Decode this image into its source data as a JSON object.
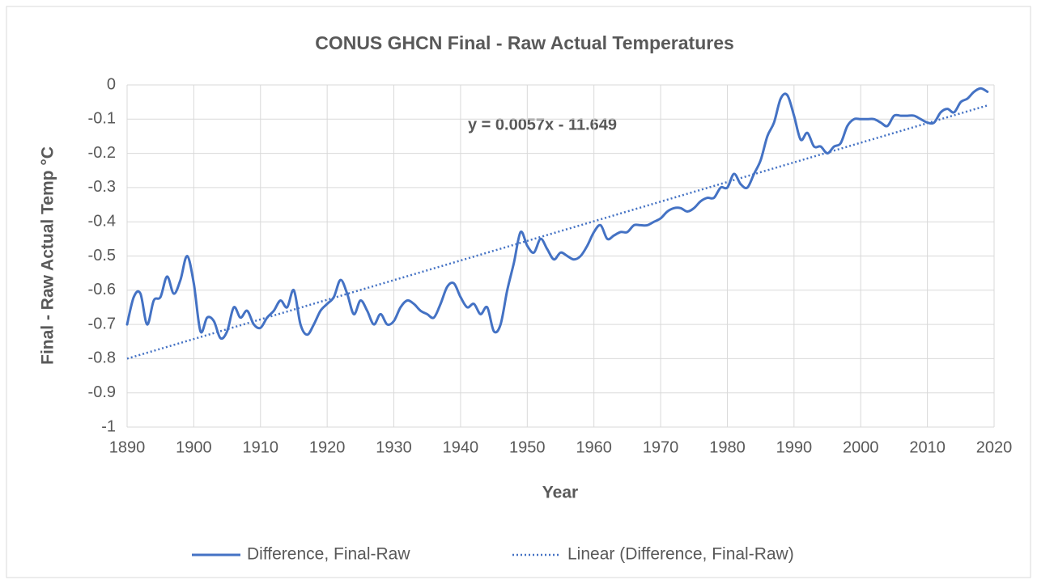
{
  "chart_data": {
    "type": "line",
    "title": "CONUS GHCN Final - Raw Actual Temperatures",
    "xlabel": "Year",
    "ylabel": "Final - Raw Actual Temp °C",
    "annotation": "y = 0.0057x - 11.649",
    "x": [
      1890,
      1891,
      1892,
      1893,
      1894,
      1895,
      1896,
      1897,
      1898,
      1899,
      1900,
      1901,
      1902,
      1903,
      1904,
      1905,
      1906,
      1907,
      1908,
      1909,
      1910,
      1911,
      1912,
      1913,
      1914,
      1915,
      1916,
      1917,
      1918,
      1919,
      1920,
      1921,
      1922,
      1923,
      1924,
      1925,
      1926,
      1927,
      1928,
      1929,
      1930,
      1931,
      1932,
      1933,
      1934,
      1935,
      1936,
      1937,
      1938,
      1939,
      1940,
      1941,
      1942,
      1943,
      1944,
      1945,
      1946,
      1947,
      1948,
      1949,
      1950,
      1951,
      1952,
      1953,
      1954,
      1955,
      1956,
      1957,
      1958,
      1959,
      1960,
      1961,
      1962,
      1963,
      1964,
      1965,
      1966,
      1967,
      1968,
      1969,
      1970,
      1971,
      1972,
      1973,
      1974,
      1975,
      1976,
      1977,
      1978,
      1979,
      1980,
      1981,
      1982,
      1983,
      1984,
      1985,
      1986,
      1987,
      1988,
      1989,
      1990,
      1991,
      1992,
      1993,
      1994,
      1995,
      1996,
      1997,
      1998,
      1999,
      2000,
      2001,
      2002,
      2003,
      2004,
      2005,
      2006,
      2007,
      2008,
      2009,
      2010,
      2011,
      2012,
      2013,
      2014,
      2015,
      2016,
      2017,
      2018,
      2019
    ],
    "series": [
      {
        "name": "Difference, Final-Raw",
        "color": "#4472c4",
        "style": "solid",
        "values": [
          -0.7,
          -0.62,
          -0.61,
          -0.7,
          -0.63,
          -0.62,
          -0.56,
          -0.61,
          -0.57,
          -0.5,
          -0.58,
          -0.72,
          -0.68,
          -0.69,
          -0.74,
          -0.72,
          -0.65,
          -0.68,
          -0.66,
          -0.7,
          -0.71,
          -0.68,
          -0.66,
          -0.63,
          -0.65,
          -0.6,
          -0.7,
          -0.73,
          -0.7,
          -0.66,
          -0.64,
          -0.62,
          -0.57,
          -0.61,
          -0.67,
          -0.63,
          -0.66,
          -0.7,
          -0.67,
          -0.7,
          -0.69,
          -0.65,
          -0.63,
          -0.64,
          -0.66,
          -0.67,
          -0.68,
          -0.64,
          -0.59,
          -0.58,
          -0.62,
          -0.65,
          -0.64,
          -0.67,
          -0.65,
          -0.72,
          -0.7,
          -0.6,
          -0.52,
          -0.43,
          -0.47,
          -0.49,
          -0.45,
          -0.48,
          -0.51,
          -0.49,
          -0.5,
          -0.51,
          -0.5,
          -0.47,
          -0.43,
          -0.41,
          -0.45,
          -0.44,
          -0.43,
          -0.43,
          -0.41,
          -0.41,
          -0.41,
          -0.4,
          -0.39,
          -0.37,
          -0.36,
          -0.36,
          -0.37,
          -0.36,
          -0.34,
          -0.33,
          -0.33,
          -0.3,
          -0.3,
          -0.26,
          -0.29,
          -0.3,
          -0.26,
          -0.22,
          -0.15,
          -0.11,
          -0.04,
          -0.03,
          -0.09,
          -0.16,
          -0.14,
          -0.18,
          -0.18,
          -0.2,
          -0.18,
          -0.17,
          -0.12,
          -0.1,
          -0.1,
          -0.1,
          -0.1,
          -0.11,
          -0.12,
          -0.09,
          -0.09,
          -0.09,
          -0.09,
          -0.1,
          -0.11,
          -0.11,
          -0.08,
          -0.07,
          -0.08,
          -0.05,
          -0.04,
          -0.02,
          -0.01,
          -0.02
        ]
      },
      {
        "name": "Linear (Difference, Final-Raw)",
        "color": "#4472c4",
        "style": "dotted",
        "x": [
          1890,
          2019
        ],
        "values": [
          -0.8,
          -0.06
        ]
      }
    ],
    "xlim": [
      1890,
      2020
    ],
    "xticks": [
      1890,
      1900,
      1910,
      1920,
      1930,
      1940,
      1950,
      1960,
      1970,
      1980,
      1990,
      2000,
      2010,
      2020
    ],
    "ylim": [
      -1,
      0
    ],
    "yticks": [
      0,
      -0.1,
      -0.2,
      -0.3,
      -0.4,
      -0.5,
      -0.6,
      -0.7,
      -0.8,
      -0.9,
      -1
    ],
    "grid": true,
    "legend": "bottom"
  }
}
